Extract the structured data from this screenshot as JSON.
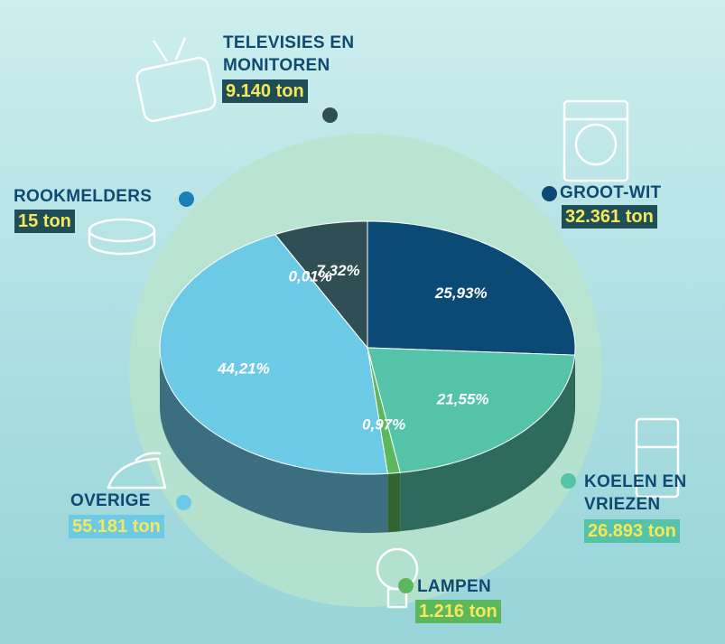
{
  "chart_data": {
    "type": "pie",
    "categories": [
      "GROOT-WIT",
      "KOELEN EN VRIEZEN",
      "LAMPEN",
      "OVERIGE",
      "ROOKMELDERS",
      "TELEVISIES EN MONITOREN"
    ],
    "values": [
      25.93,
      21.55,
      0.97,
      44.21,
      0.01,
      7.32
    ],
    "value_labels": [
      "25,93%",
      "21,55%",
      "0,97%",
      "44,21%",
      "0,01%",
      "7,32%"
    ],
    "amount_labels": [
      "32.361 ton",
      "26.893 ton",
      "1.216 ton",
      "55.181 ton",
      "15 ton",
      "9.140 ton"
    ],
    "colors": [
      "#0b4a74",
      "#55c3a8",
      "#5cb85c",
      "#6ccae6",
      "#1a7fb5",
      "#2f4f54"
    ]
  }
}
